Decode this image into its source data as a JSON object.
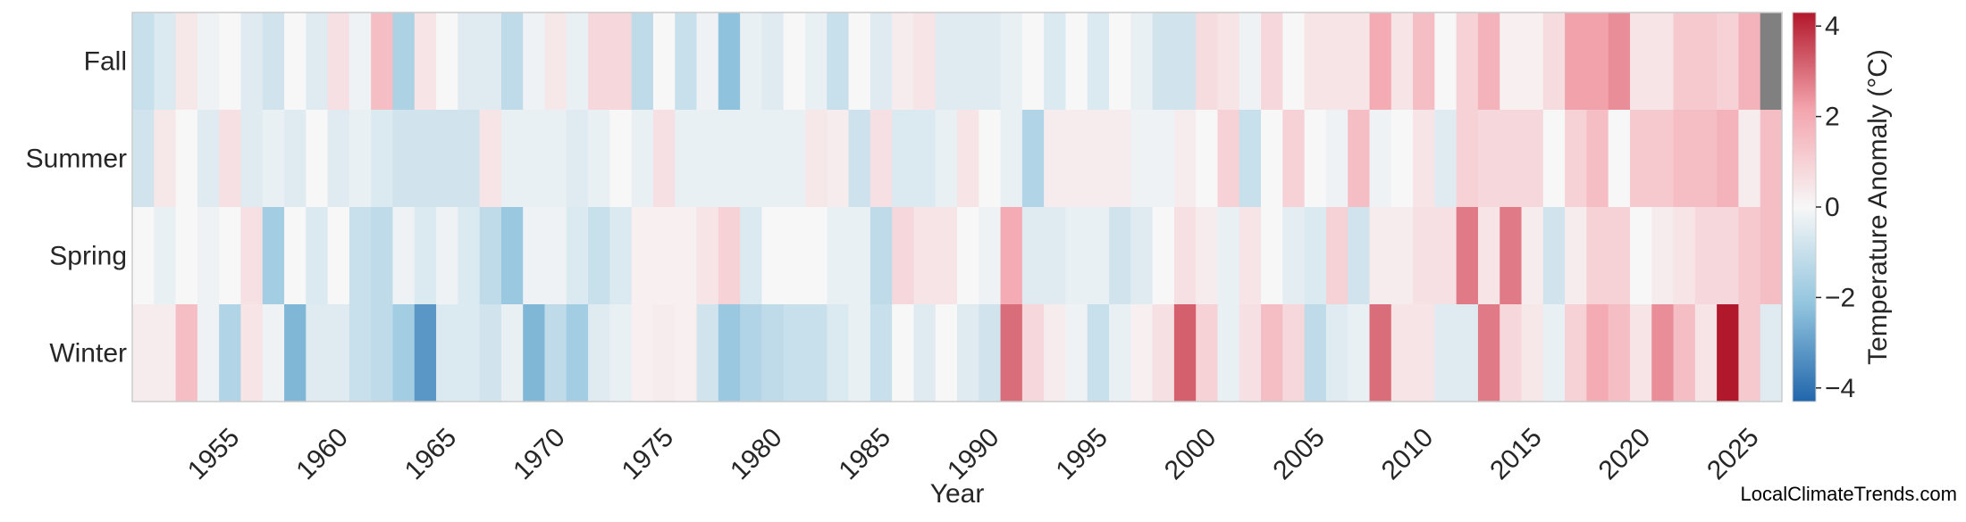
{
  "chart_data": {
    "type": "heatmap",
    "title": "",
    "xlabel": "Year",
    "rows": [
      "Fall",
      "Summer",
      "Spring",
      "Winter"
    ],
    "years_start": 1950,
    "years_end": 2025,
    "x_tick_labels": [
      "1955",
      "1960",
      "1965",
      "1970",
      "1975",
      "1980",
      "1985",
      "1990",
      "1995",
      "2000",
      "2005",
      "2010",
      "2015",
      "2020",
      "2025"
    ],
    "colorbar": {
      "label": "Temperature Anomaly (°C)",
      "vmin": -4.3,
      "vmax": 4.3,
      "ticks": [
        -4,
        -2,
        0,
        2,
        4
      ],
      "tick_labels": [
        "−4",
        "−2",
        "0",
        "2",
        "4"
      ],
      "colors": [
        "#2166ac",
        "#f7f7f7",
        "#b2182b"
      ]
    },
    "missing_color": "#808080",
    "values": {
      "Fall": [
        -1.0,
        -0.6,
        0.4,
        -0.2,
        0.0,
        -0.5,
        -0.8,
        0.0,
        -0.5,
        0.6,
        -0.2,
        1.5,
        -1.6,
        0.5,
        0.0,
        -0.5,
        -0.5,
        -1.2,
        -0.2,
        0.4,
        -0.3,
        0.8,
        0.8,
        -1.2,
        0.0,
        -1.0,
        -0.2,
        -2.2,
        -0.3,
        -0.5,
        0.0,
        -0.3,
        -1.0,
        0.0,
        -0.5,
        0.3,
        0.5,
        -0.5,
        -0.5,
        -0.5,
        -0.3,
        0.0,
        -0.6,
        0.0,
        -0.6,
        0.0,
        -0.3,
        -0.8,
        -0.8,
        0.7,
        0.5,
        -0.2,
        0.8,
        0.0,
        0.5,
        0.5,
        0.5,
        2.0,
        0.5,
        1.5,
        0.0,
        1.0,
        1.8,
        0.2,
        0.2,
        0.7,
        2.2,
        2.2,
        2.5,
        0.5,
        0.5,
        1.2,
        1.2,
        1.0,
        1.8,
        null
      ],
      "Summer": [
        -0.8,
        0.4,
        0.0,
        -0.5,
        0.6,
        -0.5,
        -0.3,
        -0.5,
        0.0,
        -0.5,
        -0.3,
        -0.6,
        -0.8,
        -0.8,
        -0.8,
        -0.8,
        0.5,
        -0.3,
        -0.3,
        -0.3,
        -0.5,
        -0.3,
        0.0,
        -0.3,
        0.6,
        -0.3,
        -0.3,
        -0.3,
        -0.3,
        -0.3,
        -0.3,
        0.4,
        0.3,
        -0.9,
        0.6,
        -0.6,
        -0.6,
        -0.3,
        0.5,
        0.0,
        -0.3,
        -1.5,
        0.3,
        0.3,
        0.3,
        0.3,
        -0.2,
        -0.2,
        0.3,
        0.0,
        1.0,
        -1.0,
        0.0,
        1.0,
        0.0,
        -0.2,
        1.5,
        -0.2,
        0.0,
        0.5,
        -0.5,
        1.0,
        0.8,
        0.8,
        0.8,
        0.0,
        1.0,
        1.5,
        0.0,
        1.2,
        1.2,
        1.5,
        1.5,
        1.8,
        0.3,
        1.5
      ],
      "Spring": [
        0.0,
        -0.3,
        0.0,
        -0.2,
        0.0,
        0.6,
        -1.8,
        0.0,
        -0.6,
        0.0,
        -1.0,
        -1.2,
        -0.2,
        -0.6,
        -0.2,
        -0.6,
        -1.2,
        -2.0,
        -0.2,
        -0.2,
        -0.6,
        -1.0,
        -0.6,
        0.2,
        0.2,
        0.2,
        0.5,
        1.0,
        -0.6,
        0.0,
        0.0,
        0.0,
        -0.3,
        -0.3,
        -1.2,
        0.8,
        0.5,
        0.5,
        0.0,
        -0.2,
        2.0,
        -0.5,
        -0.5,
        -0.3,
        -0.3,
        -0.8,
        -0.5,
        0.0,
        0.6,
        0.3,
        -0.3,
        0.5,
        0.0,
        -0.4,
        -0.6,
        1.0,
        -0.8,
        0.3,
        0.3,
        0.6,
        0.6,
        2.8,
        0.5,
        2.8,
        0.3,
        -0.8,
        0.3,
        1.0,
        1.0,
        0.0,
        0.3,
        0.5,
        0.8,
        0.8,
        1.2,
        1.5
      ],
      "Winter": [
        0.3,
        0.3,
        1.5,
        -0.2,
        -1.5,
        0.5,
        -0.2,
        -2.5,
        -0.5,
        -0.5,
        -1.0,
        -1.2,
        -1.8,
        -3.2,
        -0.6,
        -0.6,
        -0.8,
        -0.3,
        -2.5,
        -1.2,
        -1.8,
        -0.5,
        -0.3,
        0.2,
        0.3,
        0.2,
        -0.8,
        -2.0,
        -1.5,
        -1.2,
        -1.0,
        -1.0,
        -0.6,
        -0.3,
        -1.0,
        0.0,
        -0.5,
        0.0,
        -0.5,
        -0.8,
        3.0,
        0.8,
        0.3,
        -0.2,
        -1.0,
        -0.3,
        0.2,
        0.6,
        3.2,
        1.0,
        -0.3,
        0.6,
        1.5,
        0.8,
        -1.2,
        -0.5,
        -0.3,
        3.0,
        0.5,
        0.5,
        -0.5,
        -0.5,
        2.8,
        0.8,
        0.4,
        -0.3,
        1.0,
        2.0,
        1.5,
        0.5,
        2.5,
        1.5,
        0.5,
        4.3,
        1.2,
        -0.5
      ]
    }
  },
  "watermark": "LocalClimateTrends.com"
}
